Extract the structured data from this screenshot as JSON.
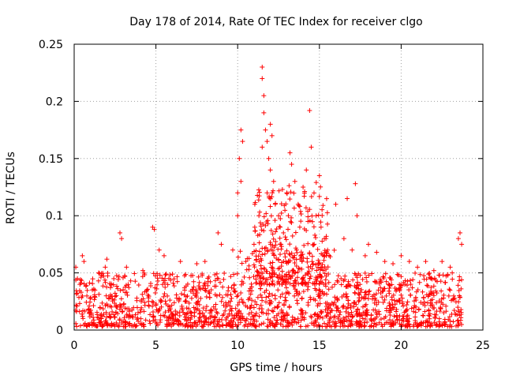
{
  "chart_data": {
    "type": "scatter",
    "title": "Day 178 of 2014, Rate Of TEC Index for receiver clgo",
    "xlabel": "GPS time / hours",
    "ylabel": "ROTI / TECUs",
    "xlim": [
      0,
      25
    ],
    "ylim": [
      0,
      0.25
    ],
    "grid": true,
    "marker": "+",
    "color": "#ff0000",
    "x_ticks": [
      0,
      5,
      10,
      15,
      20,
      25
    ],
    "x_tick_labels": [
      "0",
      "5",
      "10",
      "15",
      "20",
      "25"
    ],
    "y_ticks": [
      0,
      0.05,
      0.1,
      0.15,
      0.2,
      0.25
    ],
    "y_tick_labels": [
      "0",
      "0.05",
      "0.1",
      "0.15",
      "0.2",
      "0.25"
    ],
    "series": [
      {
        "name": "ROTI",
        "points": [
          [
            0.1,
            0.055
          ],
          [
            0.2,
            0.045
          ],
          [
            0.5,
            0.065
          ],
          [
            0.6,
            0.06
          ],
          [
            1.5,
            0.05
          ],
          [
            1.9,
            0.055
          ],
          [
            2.0,
            0.062
          ],
          [
            2.8,
            0.085
          ],
          [
            2.9,
            0.08
          ],
          [
            3.2,
            0.055
          ],
          [
            4.2,
            0.052
          ],
          [
            4.8,
            0.09
          ],
          [
            4.9,
            0.088
          ],
          [
            5.2,
            0.07
          ],
          [
            5.5,
            0.065
          ],
          [
            6.5,
            0.06
          ],
          [
            7.5,
            0.058
          ],
          [
            8.0,
            0.06
          ],
          [
            8.8,
            0.085
          ],
          [
            9.0,
            0.075
          ],
          [
            9.7,
            0.07
          ],
          [
            10.0,
            0.12
          ],
          [
            10.1,
            0.15
          ],
          [
            10.2,
            0.175
          ],
          [
            10.3,
            0.165
          ],
          [
            10.2,
            0.13
          ],
          [
            10.0,
            0.1
          ],
          [
            10.5,
            0.06
          ],
          [
            11.0,
            0.075
          ],
          [
            11.3,
            0.1
          ],
          [
            11.5,
            0.23
          ],
          [
            11.5,
            0.22
          ],
          [
            11.6,
            0.205
          ],
          [
            11.6,
            0.19
          ],
          [
            11.7,
            0.175
          ],
          [
            11.5,
            0.16
          ],
          [
            11.8,
            0.165
          ],
          [
            11.9,
            0.15
          ],
          [
            12.0,
            0.18
          ],
          [
            12.1,
            0.17
          ],
          [
            12.0,
            0.14
          ],
          [
            12.2,
            0.13
          ],
          [
            11.8,
            0.12
          ],
          [
            12.3,
            0.11
          ],
          [
            12.5,
            0.1
          ],
          [
            12.6,
            0.09
          ],
          [
            12.8,
            0.085
          ],
          [
            13.0,
            0.12
          ],
          [
            13.2,
            0.155
          ],
          [
            13.3,
            0.145
          ],
          [
            13.1,
            0.1
          ],
          [
            13.5,
            0.13
          ],
          [
            13.7,
            0.11
          ],
          [
            13.8,
            0.09
          ],
          [
            14.0,
            0.125
          ],
          [
            14.2,
            0.14
          ],
          [
            14.4,
            0.192
          ],
          [
            14.5,
            0.16
          ],
          [
            14.3,
            0.095
          ],
          [
            14.8,
            0.1
          ],
          [
            15.0,
            0.135
          ],
          [
            15.1,
            0.09
          ],
          [
            15.3,
            0.08
          ],
          [
            15.5,
            0.07
          ],
          [
            16.0,
            0.11
          ],
          [
            16.5,
            0.08
          ],
          [
            16.7,
            0.115
          ],
          [
            17.2,
            0.128
          ],
          [
            17.3,
            0.1
          ],
          [
            17.0,
            0.07
          ],
          [
            17.8,
            0.065
          ],
          [
            18.0,
            0.075
          ],
          [
            18.5,
            0.068
          ],
          [
            19.0,
            0.06
          ],
          [
            19.5,
            0.058
          ],
          [
            20.0,
            0.065
          ],
          [
            20.5,
            0.06
          ],
          [
            21.0,
            0.055
          ],
          [
            21.5,
            0.06
          ],
          [
            22.0,
            0.052
          ],
          [
            22.5,
            0.06
          ],
          [
            23.0,
            0.055
          ],
          [
            23.5,
            0.08
          ],
          [
            23.6,
            0.085
          ],
          [
            23.7,
            0.075
          ]
        ],
        "baseline_band": [
          0.003,
          0.05
        ]
      }
    ]
  }
}
